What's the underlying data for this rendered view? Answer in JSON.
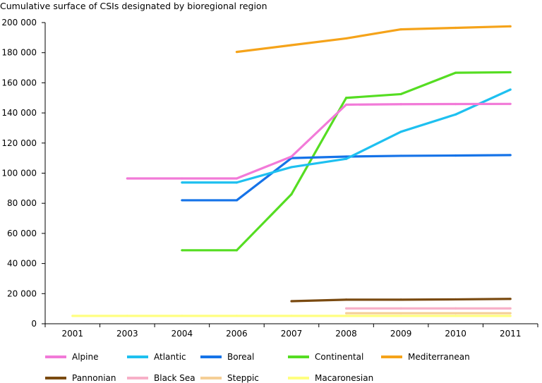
{
  "chart_data": {
    "type": "line",
    "title": "Cumulative surface of CSIs designated by bioregional region",
    "xlabel": "",
    "ylabel": "",
    "categories": [
      "2001",
      "2003",
      "2004",
      "2006",
      "2007",
      "2008",
      "2009",
      "2010",
      "2011"
    ],
    "ylim": [
      0,
      200000
    ],
    "yticks": [
      0,
      20000,
      40000,
      60000,
      80000,
      100000,
      120000,
      140000,
      160000,
      180000,
      200000
    ],
    "ytick_labels": [
      "0",
      "20 000",
      "40 000",
      "60 000",
      "80 000",
      "100 000",
      "120 000",
      "140 000",
      "160 000",
      "180 000",
      "200 000"
    ],
    "grid": false,
    "legend_position": "bottom",
    "series": [
      {
        "name": "Alpine",
        "color": "#f27ad8",
        "values": [
          null,
          96500,
          96500,
          96500,
          111000,
          145500,
          145800,
          145900,
          146000
        ]
      },
      {
        "name": "Atlantic",
        "color": "#1ec0f0",
        "values": [
          null,
          null,
          93800,
          93800,
          104000,
          109500,
          127500,
          139000,
          155500
        ]
      },
      {
        "name": "Boreal",
        "color": "#1573e8",
        "values": [
          null,
          null,
          82000,
          82000,
          110000,
          111000,
          111500,
          111700,
          112000
        ]
      },
      {
        "name": "Continental",
        "color": "#55dd22",
        "values": [
          null,
          null,
          48800,
          48800,
          86000,
          150000,
          152500,
          166700,
          167000
        ]
      },
      {
        "name": "Mediterranean",
        "color": "#f5a31a",
        "values": [
          null,
          null,
          null,
          180500,
          185000,
          189500,
          195500,
          196500,
          197500
        ]
      },
      {
        "name": "Pannonian",
        "color": "#7a4a10",
        "values": [
          null,
          null,
          null,
          null,
          15000,
          16000,
          16000,
          16200,
          16500
        ]
      },
      {
        "name": "Black Sea",
        "color": "#f7b0c8",
        "values": [
          null,
          null,
          null,
          null,
          null,
          10200,
          10200,
          10200,
          10200
        ]
      },
      {
        "name": "Steppic",
        "color": "#f5cf96",
        "values": [
          null,
          null,
          null,
          null,
          null,
          7000,
          7000,
          7000,
          7000
        ]
      },
      {
        "name": "Macaronesian",
        "color": "#ffff80",
        "values": [
          5200,
          5200,
          5200,
          5200,
          5200,
          5200,
          5200,
          5200,
          5200
        ]
      }
    ]
  }
}
